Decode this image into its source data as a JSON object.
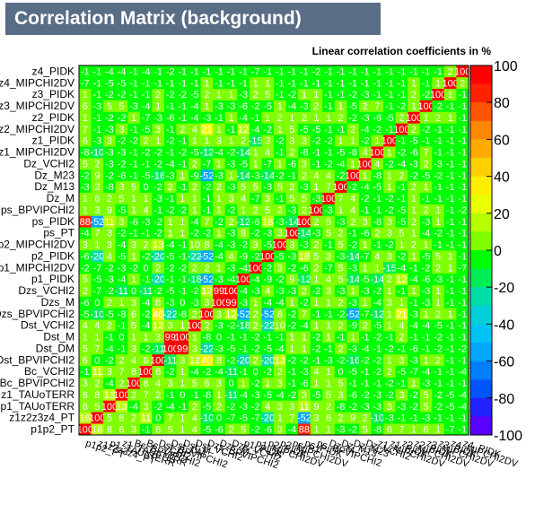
{
  "page": {
    "title": "Correlation Matrix (background)",
    "subtitle": "Linear correlation coefficients in %"
  },
  "chart_data": {
    "type": "heatmap",
    "variables": [
      "p1p2_PT",
      "z1z2z3z4_PT",
      "p1_TAUoTERR",
      "z1_TAUoTERR",
      "Bc_BPVIPCHI2",
      "Bc_VCHI2",
      "Dst_BPVIPCHI2",
      "Dst_DM",
      "Dst_M",
      "Dst_VCHI2",
      "Dzs_BPVIPCHI2",
      "Dzs_M",
      "Dzs_VCHI2",
      "p1_PIDK",
      "p1_MIPCHI2DV",
      "p2_PIDK",
      "p2_MIPCHI2DV",
      "ps_PT",
      "ps_PIDK",
      "ps_BPVIPCHI2",
      "Dz_M",
      "Dz_M13",
      "Dz_M23",
      "Dz_VCHI2",
      "z1_MIPCHI2DV",
      "z1_PIDK",
      "z2_MIPCHI2DV",
      "z2_PIDK",
      "z3_MIPCHI2DV",
      "z3_PIDK",
      "z4_MIPCHI2DV",
      "z4_PIDK"
    ],
    "y_labels": [
      "p1p2_PT",
      "z1z2z3z4_PT",
      "p1_TAUoTERR",
      "z1_TAUoTERR",
      "Bc_BPVIPCHI2",
      "Bc_VCHI2",
      "Dst_BPVIPCHI2",
      "Dst_DM",
      "Dst_M",
      "Dst_VCHI2",
      "Dzs_BPVIPCHI2",
      "Dzs_M",
      "Dzs_VCHI2",
      "p1_PIDK",
      "p1_MIPCHI2DV",
      "p2_PIDK",
      "p2_MIPCHI2DV",
      "ps_PT",
      "ps_PIDK",
      "ps_BPVIPCHI2",
      "Dz_M",
      "Dz_M13",
      "Dz_M23",
      "Dz_VCHI2",
      "z1_MIPCHI2DV",
      "z1_PIDK",
      "z2_MIPCHI2DV",
      "z2_PIDK",
      "z3_MIPCHI2DV",
      "z3_PIDK",
      "z4_MIPCHI2DV",
      "z4_PIDK"
    ],
    "values": [
      [
        100,
        16,
        8,
        6,
        3,
        -1,
        6,
        5,
        1,
        4,
        -5,
        -6,
        2,
        5,
        -2,
        -6,
        3,
        -4,
        88,
        1,
        1,
        -3,
        -2,
        5,
        -8,
        6,
        7,
        1,
        6,
        1,
        -7,
        -1
      ],
      [
        16,
        100,
        5,
        8,
        2,
        11,
        0,
        7,
        1,
        4,
        -10,
        0,
        -7,
        -5,
        -7,
        -20,
        1,
        7,
        -52,
        3,
        6,
        2,
        9,
        2,
        -10,
        -3,
        -1,
        -1,
        -3,
        -1,
        -1,
        -1
      ],
      [
        8,
        5,
        100,
        13,
        -4,
        3,
        -2,
        -4,
        -1,
        2,
        -5,
        2,
        -2,
        -3,
        -2,
        4,
        3,
        3,
        11,
        9,
        2,
        -8,
        -2,
        -3,
        -3,
        3,
        -3,
        -2,
        5,
        -2,
        -5,
        -4
      ],
      [
        6,
        8,
        13,
        100,
        2,
        7,
        2,
        -1,
        0,
        -1,
        -8,
        1,
        -11,
        -4,
        -3,
        -5,
        -4,
        -2,
        3,
        -5,
        5,
        3,
        -6,
        -2,
        -3,
        -2,
        3,
        -2,
        5,
        -2,
        -5,
        -4
      ],
      [
        3,
        2,
        -4,
        2,
        100,
        8,
        4,
        3,
        1,
        5,
        6,
        3,
        0,
        1,
        -2,
        1,
        3,
        -1,
        -6,
        1,
        1,
        5,
        -1,
        -1,
        -1,
        -2,
        -1,
        1,
        -3,
        -1,
        -1,
        -1
      ],
      [
        -1,
        11,
        3,
        7,
        8,
        100,
        8,
        -2,
        1,
        -4,
        -2,
        -4,
        -11,
        -1,
        0,
        -2,
        2,
        -1,
        -3,
        4,
        1,
        0,
        -5,
        -1,
        -2,
        2,
        -5,
        -7,
        -4,
        -1,
        -1,
        -4
      ],
      [
        6,
        0,
        -2,
        2,
        4,
        8,
        100,
        -11,
        3,
        12,
        40,
        8,
        -2,
        -20,
        2,
        -20,
        13,
        -2,
        -2,
        -1,
        -3,
        -2,
        -16,
        -2,
        -2,
        1,
        3,
        -3,
        1,
        2,
        -1,
        -1
      ],
      [
        5,
        7,
        -4,
        -1,
        3,
        -2,
        -11,
        100,
        99,
        3,
        -22,
        -3,
        -5,
        -1,
        -2,
        -5,
        -4,
        1,
        1,
        -2,
        -1,
        2,
        -3,
        -4,
        -1,
        -2,
        -1,
        -6,
        -1,
        -2,
        -1,
        -2
      ],
      [
        1,
        1,
        -1,
        0,
        1,
        1,
        3,
        99,
        100,
        1,
        -8,
        0,
        -1,
        -1,
        -2,
        -1,
        -1,
        1,
        1,
        -2,
        1,
        -1,
        1,
        -1,
        -2,
        -1,
        2,
        -1,
        -1,
        -2,
        -1,
        -1
      ],
      [
        4,
        4,
        2,
        -1,
        5,
        -4,
        12,
        3,
        1,
        100,
        2,
        -3,
        -2,
        -18,
        2,
        -22,
        10,
        -2,
        -4,
        1,
        1,
        2,
        -9,
        2,
        -5,
        1,
        4,
        -4,
        -4,
        -5,
        -1,
        -1
      ],
      [
        -5,
        -10,
        -5,
        -8,
        6,
        -2,
        40,
        -22,
        -8,
        2,
        100,
        3,
        12,
        -52,
        2,
        -52,
        8,
        -2,
        7,
        -1,
        -1,
        -2,
        -52,
        -7,
        -12,
        1,
        21,
        -3,
        1,
        2,
        1,
        -1
      ],
      [
        -6,
        0,
        2,
        1,
        3,
        -4,
        8,
        -3,
        0,
        -3,
        3,
        100,
        99,
        -3,
        1,
        -4,
        -4,
        1,
        -2,
        1,
        1,
        2,
        -3,
        1,
        -4,
        3,
        1,
        -1,
        -3,
        1,
        -1,
        -1
      ],
      [
        2,
        -7,
        -2,
        -11,
        0,
        -11,
        -2,
        -5,
        -1,
        -2,
        12,
        99,
        100,
        -4,
        -3,
        4,
        -3,
        -3,
        2,
        -2,
        3,
        -3,
        1,
        -3,
        -2,
        1,
        -1,
        1,
        -3,
        1,
        -1,
        -1
      ],
      [
        5,
        -5,
        -3,
        -4,
        1,
        -1,
        -20,
        -1,
        -1,
        -18,
        -52,
        -3,
        -4,
        100,
        -4,
        -9,
        -2,
        9,
        -12,
        1,
        4,
        5,
        -14,
        -5,
        -14,
        2,
        12,
        -4,
        -6,
        -3,
        -1,
        -1
      ],
      [
        -2,
        -7,
        -2,
        -3,
        -2,
        0,
        2,
        -2,
        -2,
        2,
        2,
        1,
        -3,
        -4,
        100,
        -2,
        3,
        -2,
        -6,
        2,
        -7,
        5,
        -3,
        1,
        1,
        -15,
        -4,
        -1,
        -2,
        2,
        1,
        -7
      ],
      [
        -6,
        -20,
        4,
        -5,
        1,
        -2,
        -20,
        -5,
        -1,
        -22,
        -52,
        -4,
        4,
        -9,
        -2,
        100,
        -5,
        -3,
        18,
        5,
        3,
        -3,
        -14,
        -7,
        4,
        3,
        -2,
        1,
        -5,
        5,
        1,
        -1
      ],
      [
        3,
        1,
        3,
        -4,
        3,
        2,
        13,
        -4,
        -1,
        10,
        8,
        -4,
        -3,
        -2,
        3,
        -5,
        100,
        3,
        -3,
        2,
        -1,
        5,
        -2,
        1,
        -1,
        -2,
        1,
        2,
        1,
        -1,
        -1,
        -1
      ],
      [
        -4,
        7,
        3,
        -2,
        -1,
        -1,
        -2,
        1,
        1,
        -2,
        -2,
        1,
        -3,
        9,
        -2,
        -3,
        3,
        100,
        -14,
        -3,
        5,
        2,
        -1,
        -6,
        2,
        3,
        5,
        1,
        -4,
        -2,
        -1,
        -1
      ],
      [
        88,
        -52,
        11,
        3,
        -6,
        -3,
        -2,
        1,
        1,
        -4,
        7,
        -2,
        2,
        -12,
        -6,
        18,
        -3,
        -14,
        100,
        2,
        5,
        -3,
        2,
        3,
        -8,
        3,
        -5,
        2,
        -3,
        1,
        -1,
        -1
      ],
      [
        1,
        3,
        9,
        -5,
        1,
        4,
        -1,
        -2,
        -2,
        1,
        -1,
        1,
        -2,
        1,
        2,
        5,
        2,
        -3,
        2,
        100,
        -3,
        1,
        4,
        -1,
        -1,
        -2,
        -5,
        1,
        2,
        1,
        -1,
        -2
      ],
      [
        1,
        6,
        2,
        5,
        1,
        1,
        -3,
        -1,
        1,
        1,
        -1,
        1,
        3,
        4,
        -7,
        3,
        -1,
        5,
        5,
        -3,
        100,
        7,
        4,
        -2,
        -1,
        -2,
        -1,
        1,
        -1,
        -1,
        -1,
        -1
      ],
      [
        -3,
        2,
        -8,
        3,
        5,
        0,
        -2,
        2,
        -1,
        2,
        -2,
        2,
        -3,
        5,
        5,
        -3,
        5,
        2,
        -3,
        1,
        7,
        100,
        -2,
        -4,
        -5,
        1,
        -1,
        2,
        1,
        -1,
        -1,
        -1
      ],
      [
        -2,
        9,
        -2,
        -6,
        -1,
        -5,
        -16,
        -3,
        1,
        -9,
        -52,
        -3,
        1,
        -14,
        -3,
        -14,
        -2,
        -1,
        2,
        4,
        4,
        -2,
        100,
        1,
        -8,
        1,
        2,
        -2,
        -5,
        -2,
        -1,
        -1
      ],
      [
        5,
        2,
        -3,
        -2,
        -1,
        -1,
        -2,
        -4,
        -1,
        2,
        -7,
        1,
        -3,
        -5,
        1,
        -7,
        1,
        -6,
        3,
        -1,
        -2,
        -4,
        1,
        100,
        4,
        -2,
        -4,
        -3,
        2,
        -3,
        -1,
        -1
      ],
      [
        -8,
        -10,
        -3,
        -3,
        -1,
        -2,
        -2,
        -1,
        -2,
        -5,
        -12,
        -4,
        -2,
        -14,
        1,
        4,
        -1,
        2,
        -8,
        -1,
        -1,
        -5,
        -8,
        4,
        100,
        1,
        -2,
        -6,
        7,
        -1,
        -1,
        -1
      ],
      [
        6,
        -3,
        3,
        -2,
        -2,
        2,
        1,
        -2,
        -1,
        1,
        1,
        3,
        1,
        2,
        -15,
        3,
        -2,
        3,
        3,
        -2,
        -2,
        1,
        1,
        -2,
        1,
        100,
        -1,
        -5,
        -1,
        -1,
        -1,
        -1
      ],
      [
        7,
        -1,
        -3,
        3,
        -1,
        -5,
        3,
        -1,
        2,
        4,
        21,
        1,
        -1,
        12,
        -4,
        -2,
        1,
        5,
        -5,
        -5,
        -1,
        -1,
        2,
        -4,
        -2,
        -1,
        100,
        2,
        -2,
        -1,
        -1,
        -1
      ],
      [
        1,
        -1,
        -2,
        -2,
        1,
        -7,
        -3,
        -6,
        -1,
        -4,
        -3,
        -1,
        1,
        -4,
        -1,
        1,
        2,
        1,
        2,
        1,
        1,
        2,
        -2,
        -3,
        -6,
        -5,
        2,
        100,
        1,
        2,
        1,
        -1
      ],
      [
        6,
        -3,
        5,
        5,
        -3,
        -4,
        1,
        -1,
        -1,
        -4,
        1,
        -3,
        -3,
        -6,
        -2,
        -5,
        1,
        -4,
        -3,
        2,
        -1,
        1,
        -5,
        2,
        7,
        -1,
        -2,
        1,
        100,
        -2,
        -1,
        -1
      ],
      [
        1,
        -1,
        -2,
        -2,
        -1,
        -1,
        2,
        -2,
        -2,
        -5,
        2,
        1,
        1,
        -3,
        2,
        5,
        -1,
        -2,
        1,
        1,
        -1,
        -1,
        -2,
        -3,
        -1,
        -1,
        -1,
        2,
        -2,
        100,
        1,
        -1
      ],
      [
        -7,
        -1,
        -5,
        -5,
        -1,
        -1,
        -1,
        -1,
        -1,
        -1,
        1,
        -1,
        -1,
        -1,
        1,
        1,
        -1,
        -1,
        -1,
        -1,
        -1,
        -1,
        -1,
        -1,
        -1,
        -1,
        -1,
        1,
        -1,
        1,
        100,
        2
      ],
      [
        -1,
        -1,
        -4,
        -4,
        -1,
        -4,
        -1,
        -2,
        -1,
        -1,
        -1,
        -1,
        -1,
        -1,
        -7,
        -1,
        -1,
        -1,
        -1,
        -2,
        -1,
        -1,
        -1,
        -1,
        -1,
        -1,
        -1,
        -1,
        -1,
        -1,
        2,
        100
      ]
    ],
    "zlim": [
      -100,
      100
    ],
    "colorbar_ticks": [
      100,
      80,
      60,
      40,
      20,
      0,
      -20,
      -40,
      -60,
      -80,
      -100
    ],
    "colorbar_colors": [
      "#ff0000",
      "#ff2200",
      "#ff5500",
      "#ff8800",
      "#ffaa00",
      "#ffd000",
      "#ffee00",
      "#eaff00",
      "#b8ff00",
      "#80ff00",
      "#00ff00",
      "#00ee55",
      "#00dda8",
      "#00d0d8",
      "#00c4f4",
      "#00a8ff",
      "#0080ff",
      "#0055ff",
      "#2222ff",
      "#5a00ff"
    ]
  }
}
